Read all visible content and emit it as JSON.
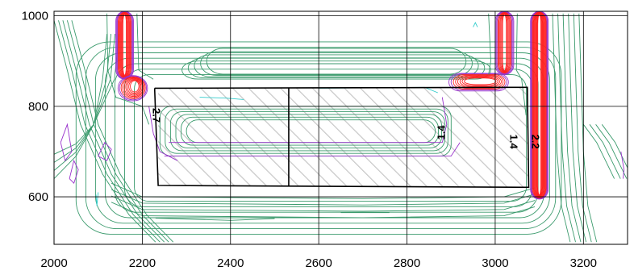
{
  "chart_data": {
    "type": "contour",
    "title": "",
    "xlabel": "",
    "ylabel": "",
    "xlim": [
      2000,
      3300
    ],
    "ylim": [
      495,
      1010
    ],
    "x_ticks": [
      2000,
      2200,
      2400,
      2600,
      2800,
      3000,
      3200
    ],
    "y_ticks": [
      600,
      800,
      1000
    ],
    "x_tick_labels": [
      "2000",
      "2200",
      "2400",
      "2600",
      "2800",
      "3000",
      "3200"
    ],
    "y_tick_labels": [
      "600",
      "800",
      "1000"
    ],
    "grid": true,
    "colors": {
      "low": "#3a9a6c",
      "mid": "#9933cc",
      "high": "#ff2020",
      "accent": "#33cccc",
      "outline": "#000000",
      "hatch": "#c8c8c8"
    },
    "contour_labels": [
      {
        "text": "2.7",
        "x": 2230,
        "y": 780,
        "rotation": 90
      },
      {
        "text": "1.4",
        "x": 2880,
        "y": 742,
        "rotation": -90
      },
      {
        "text": "1.4",
        "x": 3040,
        "y": 722,
        "rotation": 90
      },
      {
        "text": "2.2",
        "x": 3090,
        "y": 722,
        "rotation": 90
      }
    ],
    "structure": {
      "outline": [
        [
          2228,
          840
        ],
        [
          3073,
          842
        ],
        [
          3076,
          621
        ],
        [
          2236,
          625
        ],
        [
          2228,
          840
        ]
      ],
      "divider_x": 2532,
      "hatched_region": [
        [
          2236,
          840
        ],
        [
          3073,
          842
        ],
        [
          3076,
          621
        ],
        [
          2236,
          625
        ]
      ]
    },
    "hotspots": [
      {
        "name": "left-column",
        "x": [
          2145,
          2175
        ],
        "y": [
          860,
          1005
        ],
        "level": "high"
      },
      {
        "name": "left-corner",
        "x": [
          2150,
          2210
        ],
        "y": [
          810,
          860
        ],
        "level": "high"
      },
      {
        "name": "right-corner",
        "x": [
          2900,
          3030
        ],
        "y": [
          835,
          870
        ],
        "level": "high"
      },
      {
        "name": "upper-right-column",
        "x": [
          3000,
          3040
        ],
        "y": [
          870,
          1005
        ],
        "level": "high"
      },
      {
        "name": "right-column",
        "x": [
          3085,
          3115
        ],
        "y": [
          595,
          1005
        ],
        "level": "high"
      }
    ]
  }
}
